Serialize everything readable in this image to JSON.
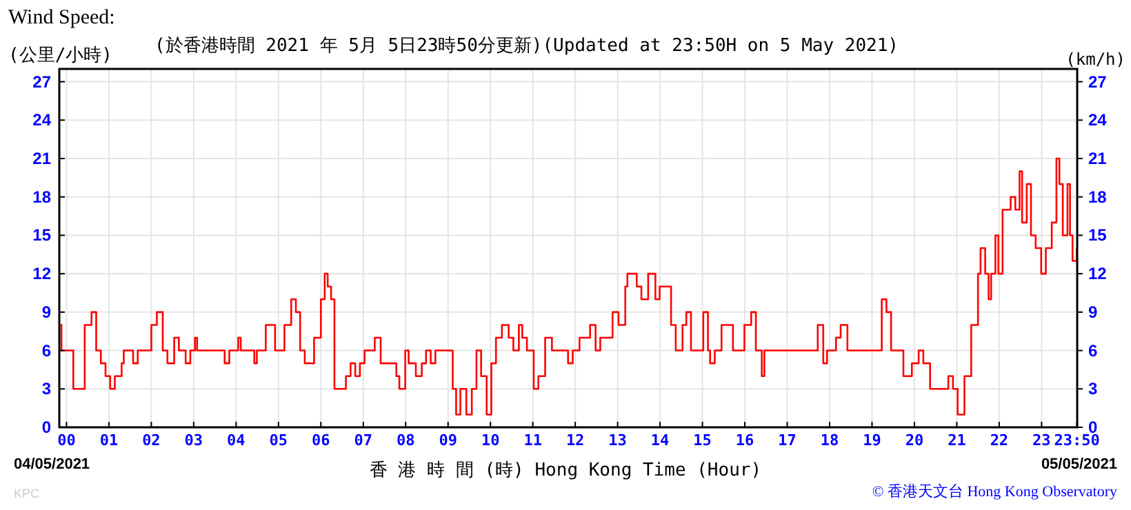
{
  "chart_data": {
    "type": "step",
    "title": "Wind Speed:",
    "subtitle": "(於香港時間 2021 年 5月 5日23時50分更新)(Updated at 23:50H on 5 May 2021)",
    "xlabel": "香 港 時 間 (時)  Hong Kong Time (Hour)",
    "ylabel": "(公里/小時)",
    "y2label": "(km/h)",
    "annotations": [
      "04/05/2021",
      "05/05/2021",
      "© 香港天文台 Hong Kong Observatory",
      "KPC"
    ],
    "x": [
      -0.16,
      -0.12,
      0.0,
      0.16,
      0.27,
      0.43,
      0.54,
      0.59,
      0.7,
      0.81,
      0.92,
      1.03,
      1.14,
      1.3,
      1.35,
      1.57,
      1.68,
      2.0,
      2.13,
      2.27,
      2.38,
      2.54,
      2.65,
      2.81,
      2.92,
      3.03,
      3.08,
      3.68,
      3.73,
      3.84,
      4.05,
      4.11,
      4.43,
      4.49,
      4.7,
      4.86,
      4.92,
      5.08,
      5.14,
      5.3,
      5.41,
      5.51,
      5.62,
      5.73,
      5.84,
      6.0,
      6.09,
      6.16,
      6.24,
      6.32,
      6.49,
      6.59,
      6.7,
      6.81,
      6.92,
      7.03,
      7.19,
      7.27,
      7.41,
      7.73,
      7.78,
      7.85,
      7.99,
      8.07,
      8.24,
      8.38,
      8.48,
      8.59,
      8.7,
      8.97,
      9.11,
      9.19,
      9.29,
      9.43,
      9.56,
      9.67,
      9.78,
      9.91,
      10.02,
      10.13,
      10.27,
      10.43,
      10.54,
      10.67,
      10.75,
      10.86,
      11.02,
      11.13,
      11.29,
      11.45,
      11.78,
      11.83,
      11.94,
      12.1,
      12.35,
      12.48,
      12.59,
      12.75,
      12.88,
      13.02,
      13.18,
      13.23,
      13.34,
      13.45,
      13.56,
      13.72,
      13.89,
      13.99,
      14.1,
      14.26,
      14.37,
      14.53,
      14.62,
      14.73,
      14.86,
      15.02,
      15.13,
      15.18,
      15.29,
      15.4,
      15.45,
      15.67,
      15.72,
      15.88,
      15.99,
      16.15,
      16.26,
      16.4,
      16.46,
      17.61,
      17.72,
      17.85,
      17.94,
      18.15,
      18.26,
      18.42,
      19.07,
      19.23,
      19.34,
      19.45,
      19.61,
      19.74,
      19.88,
      19.94,
      20.05,
      20.1,
      20.21,
      20.37,
      20.75,
      20.8,
      20.91,
      21.02,
      21.13,
      21.18,
      21.34,
      21.5,
      21.56,
      21.67,
      21.75,
      21.81,
      21.91,
      21.98,
      22.08,
      22.21,
      22.27,
      22.38,
      22.48,
      22.54,
      22.65,
      22.75,
      22.86,
      22.99,
      23.1,
      23.24,
      23.35,
      23.42,
      23.5,
      23.61,
      23.67,
      23.73,
      23.83
    ],
    "series": [
      {
        "color": "#ff0000",
        "values": [
          8,
          6,
          6,
          3,
          3,
          8,
          8,
          9,
          6,
          5,
          4,
          3,
          4,
          5,
          6,
          5,
          6,
          8,
          9,
          6,
          5,
          7,
          6,
          5,
          6,
          7,
          6,
          6,
          5,
          6,
          7,
          6,
          5,
          6,
          8,
          8,
          6,
          6,
          8,
          10,
          9,
          6,
          5,
          5,
          7,
          10,
          12,
          11,
          10,
          3,
          3,
          4,
          5,
          4,
          5,
          6,
          6,
          7,
          5,
          5,
          4,
          3,
          6,
          5,
          4,
          5,
          6,
          5,
          6,
          6,
          3,
          1,
          3,
          1,
          3,
          6,
          4,
          1,
          5,
          7,
          8,
          7,
          6,
          8,
          7,
          6,
          3,
          4,
          7,
          6,
          6,
          5,
          6,
          7,
          8,
          6,
          7,
          7,
          9,
          8,
          11,
          12,
          12,
          11,
          10,
          12,
          10,
          11,
          11,
          8,
          6,
          8,
          9,
          6,
          6,
          9,
          6,
          5,
          6,
          6,
          8,
          8,
          6,
          6,
          8,
          9,
          6,
          4,
          6,
          6,
          8,
          5,
          6,
          7,
          8,
          6,
          6,
          10,
          9,
          6,
          6,
          4,
          4,
          5,
          5,
          6,
          5,
          3,
          3,
          4,
          3,
          1,
          1,
          4,
          8,
          12,
          14,
          12,
          10,
          12,
          15,
          12,
          17,
          17,
          18,
          17,
          20,
          16,
          19,
          15,
          14,
          12,
          14,
          16,
          21,
          19,
          15,
          19,
          15,
          13,
          14
        ]
      }
    ],
    "xlim": [
      -0.17,
      23.84
    ],
    "xticks": [
      {
        "value": 0,
        "label": "00"
      },
      {
        "value": 1,
        "label": "01"
      },
      {
        "value": 2,
        "label": "02"
      },
      {
        "value": 3,
        "label": "03"
      },
      {
        "value": 4,
        "label": "04"
      },
      {
        "value": 5,
        "label": "05"
      },
      {
        "value": 6,
        "label": "06"
      },
      {
        "value": 7,
        "label": "07"
      },
      {
        "value": 8,
        "label": "08"
      },
      {
        "value": 9,
        "label": "09"
      },
      10,
      11,
      12,
      13,
      14,
      15,
      16,
      17,
      18,
      19,
      20,
      21,
      22,
      23,
      {
        "value": 23.833,
        "label": "23:50"
      }
    ],
    "ylim": [
      0,
      28
    ],
    "yticks": [
      0,
      3,
      6,
      9,
      12,
      15,
      18,
      21,
      24,
      27
    ],
    "y2lim": [
      0,
      28
    ],
    "y2ticks": [
      0,
      3,
      6,
      9,
      12,
      15,
      18,
      21,
      24,
      27
    ],
    "grid": true,
    "marker": "none",
    "line_style": "solid"
  }
}
